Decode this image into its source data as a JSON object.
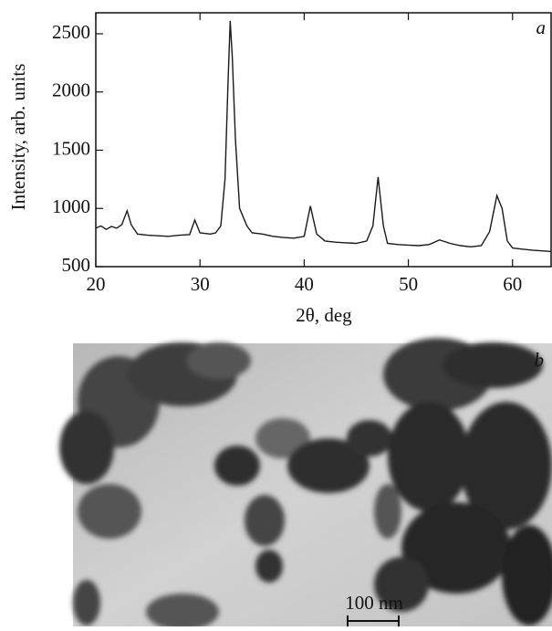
{
  "chart_data": {
    "type": "line",
    "x_label": "2θ, deg",
    "y_label": "Intensity, arb. units",
    "panel_label": "a",
    "xlim": [
      20,
      63.7
    ],
    "ylim": [
      500,
      2680
    ],
    "xticks": [
      20,
      30,
      40,
      50,
      60
    ],
    "yticks": [
      500,
      1000,
      1500,
      2000,
      2500
    ],
    "color": "#1a1a1a",
    "x": [
      20,
      20.5,
      21,
      21.5,
      22,
      22.5,
      23,
      23.4,
      24,
      25,
      26,
      27,
      28,
      29,
      29.5,
      30,
      31,
      31.5,
      32,
      32.4,
      32.7,
      32.9,
      33.1,
      33.4,
      33.8,
      34.5,
      35,
      36,
      37,
      38,
      39,
      40,
      40.6,
      41.2,
      42,
      43,
      44,
      45,
      46,
      46.6,
      47.1,
      47.6,
      48,
      49,
      50,
      51,
      52,
      53,
      54,
      55,
      56,
      57,
      57.8,
      58.5,
      59,
      59.5,
      60,
      61,
      62,
      63,
      63.7
    ],
    "values": [
      830,
      850,
      820,
      845,
      830,
      860,
      980,
      860,
      780,
      770,
      765,
      760,
      770,
      775,
      900,
      790,
      780,
      790,
      850,
      1250,
      2100,
      2610,
      2300,
      1600,
      1000,
      850,
      790,
      780,
      760,
      750,
      745,
      760,
      1020,
      780,
      720,
      710,
      705,
      700,
      720,
      850,
      1270,
      850,
      700,
      690,
      685,
      680,
      690,
      730,
      700,
      680,
      670,
      680,
      800,
      1110,
      1000,
      720,
      660,
      650,
      640,
      635,
      630
    ]
  },
  "image": {
    "panel_label": "b",
    "scale_bar": "100 nm"
  }
}
